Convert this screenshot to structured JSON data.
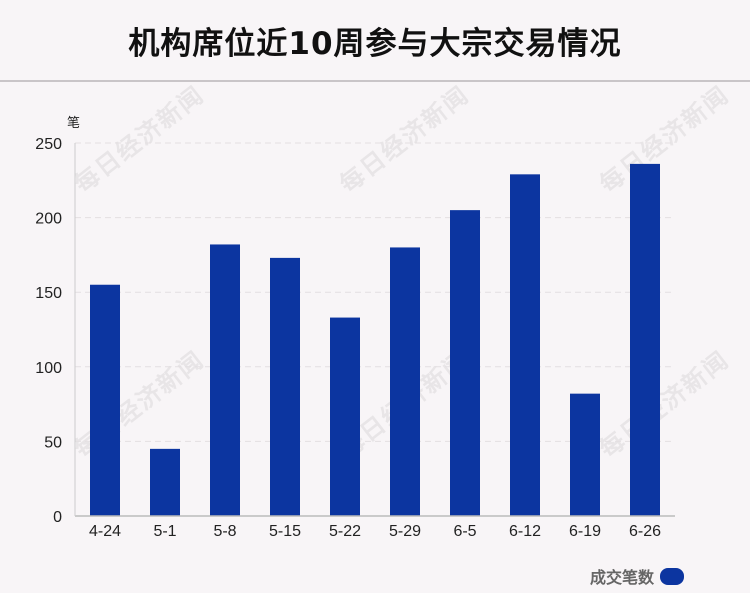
{
  "header": {
    "title": "机构席位近10周参与大宗交易情况"
  },
  "watermark_text": "每日经济新闻",
  "chart_data": {
    "type": "bar",
    "title": "机构席位近10周参与大宗交易情况",
    "unit": "笔",
    "categories": [
      "4-24",
      "5-1",
      "5-8",
      "5-15",
      "5-22",
      "5-29",
      "6-5",
      "6-12",
      "6-19",
      "6-26"
    ],
    "series": [
      {
        "name": "成交笔数",
        "values": [
          155,
          45,
          182,
          173,
          133,
          180,
          205,
          229,
          82,
          236
        ],
        "color": "#0c35a0"
      }
    ],
    "yticks": [
      0,
      50,
      100,
      150,
      200,
      250
    ],
    "ylim": [
      0,
      250
    ],
    "grid": true,
    "legend_position": "bottom-right"
  }
}
